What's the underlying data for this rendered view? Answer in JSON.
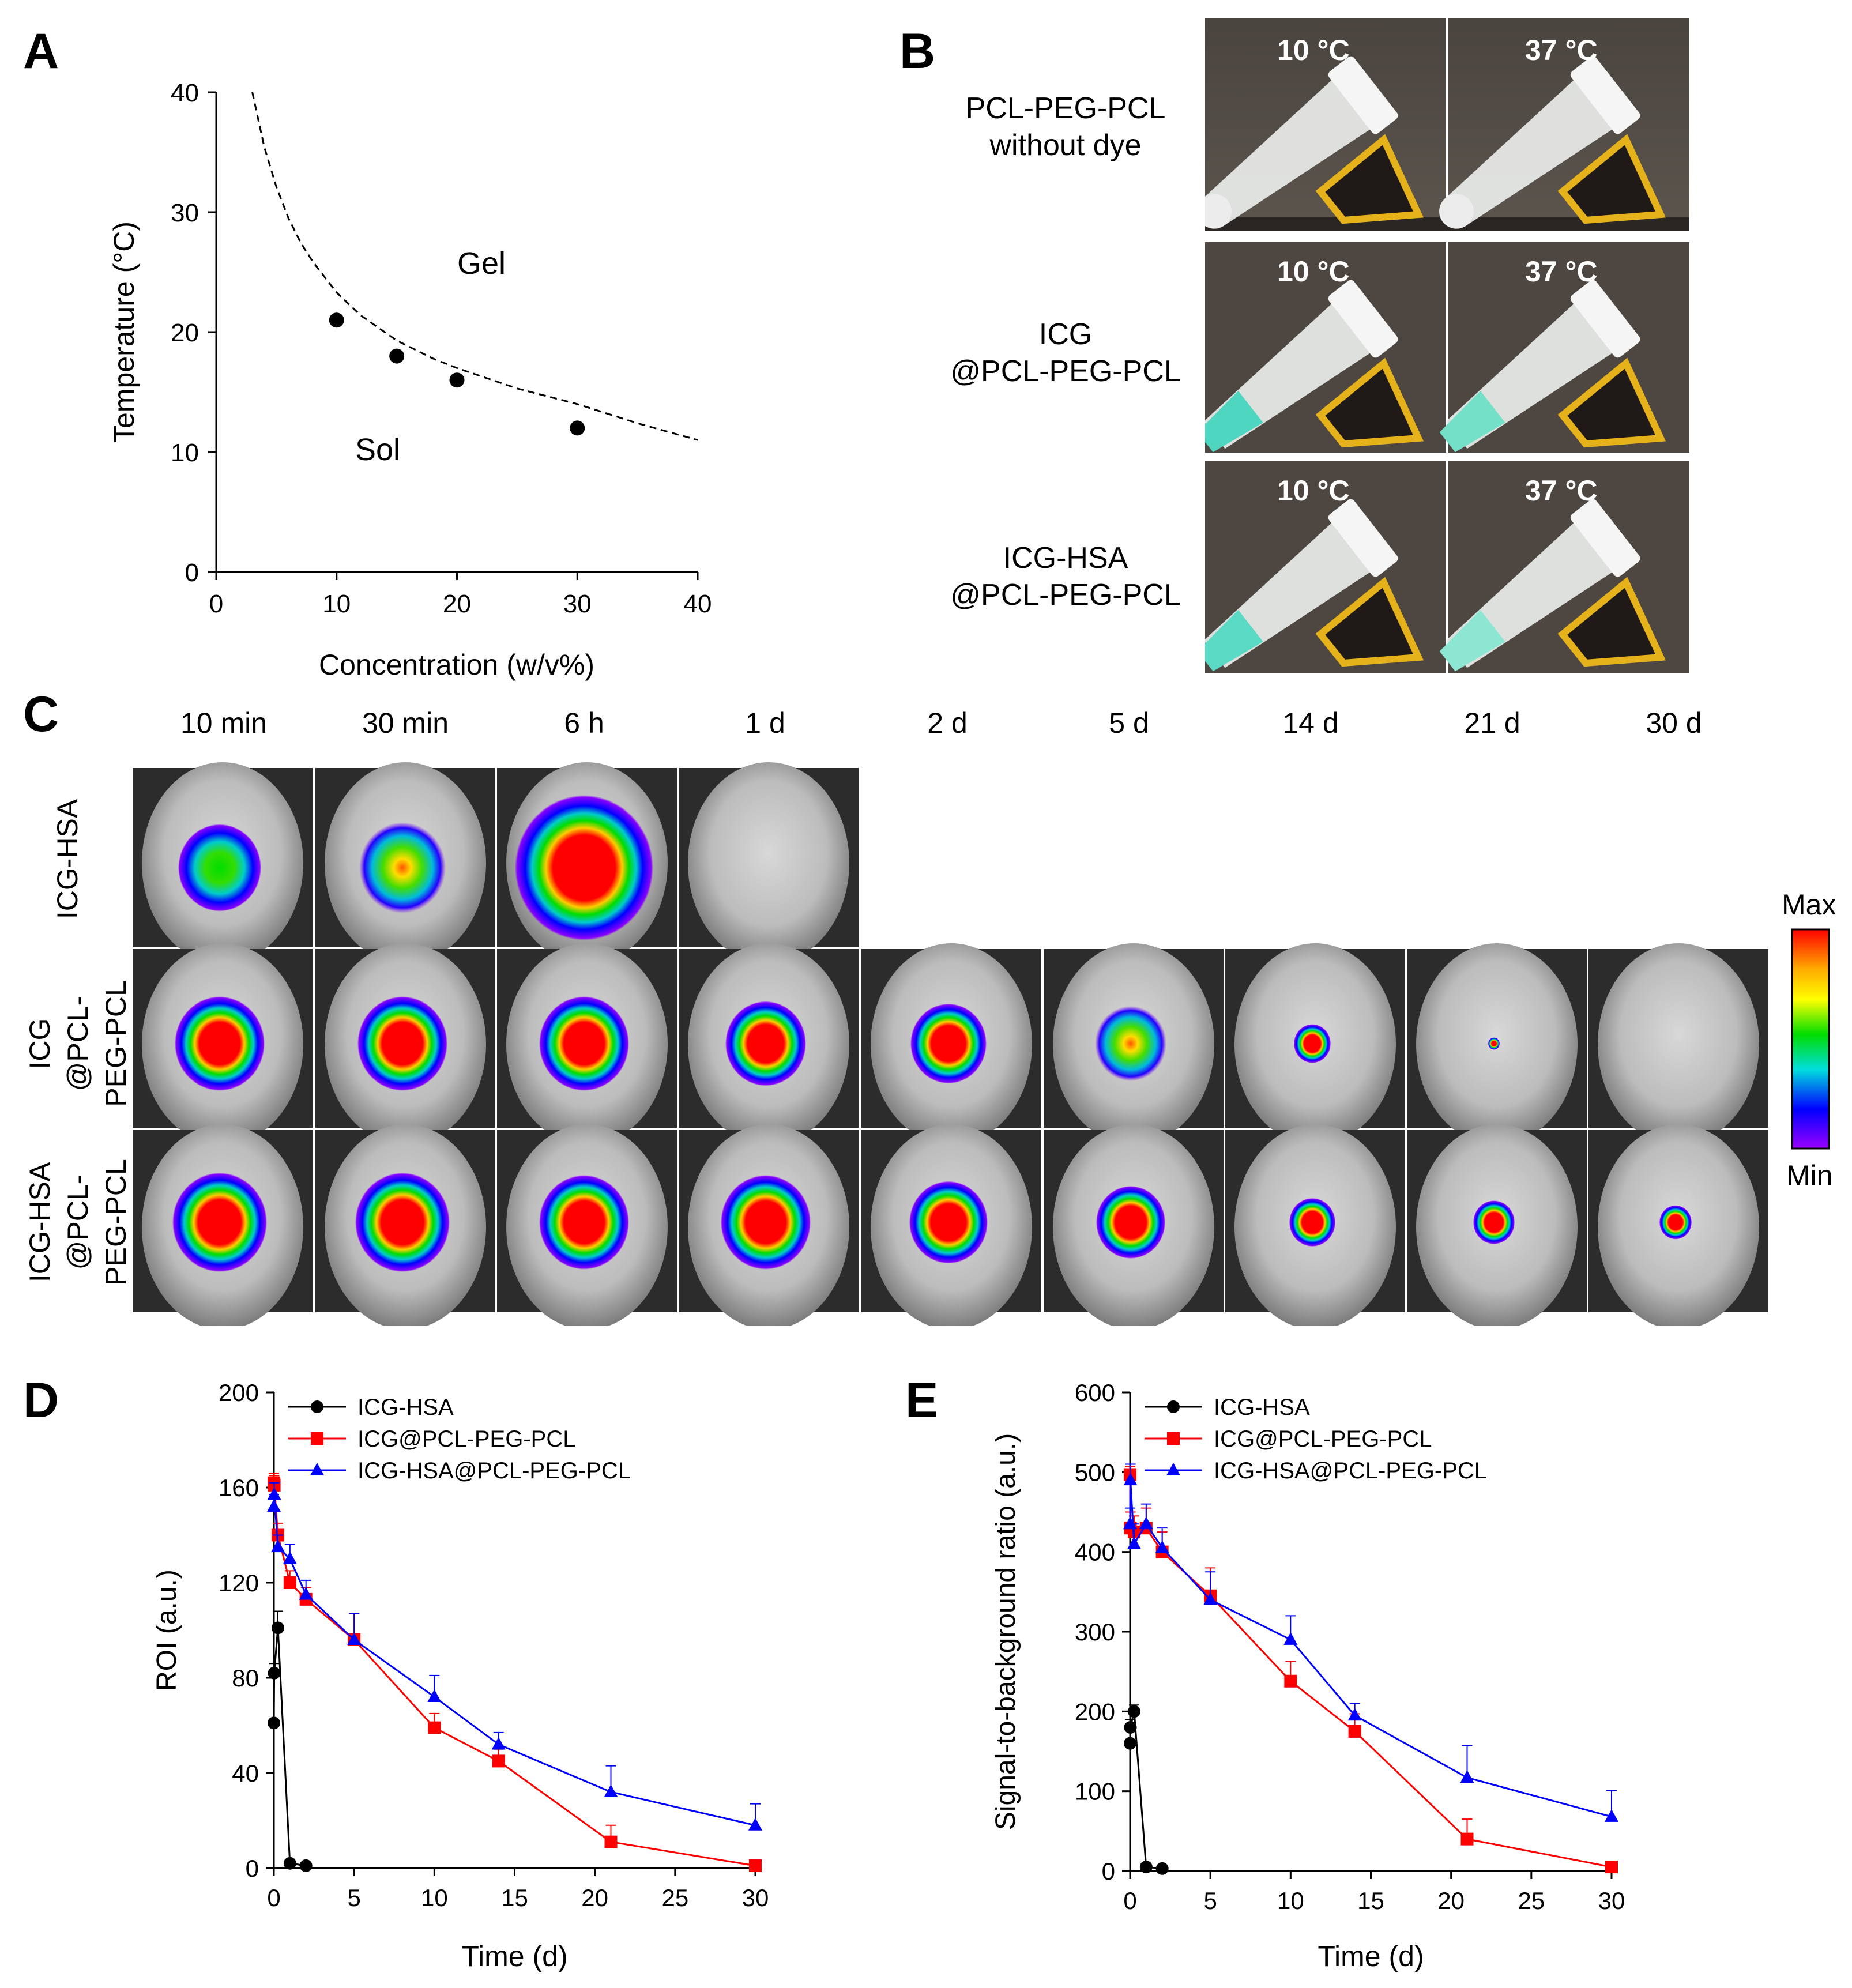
{
  "panels": {
    "a": "A",
    "b": "B",
    "c": "C",
    "d": "D",
    "e": "E"
  },
  "chart_data": [
    {
      "id": "A",
      "type": "scatter",
      "title": "",
      "xlabel": "Concentration (w/v%)",
      "ylabel": "Temperature (°C)",
      "xlim": [
        0,
        40
      ],
      "ylim": [
        0,
        40
      ],
      "x_ticks": [
        0,
        10,
        20,
        30,
        40
      ],
      "y_ticks": [
        0,
        10,
        20,
        30,
        40
      ],
      "points": {
        "x": [
          10,
          15,
          20,
          30
        ],
        "y": [
          21,
          18,
          16,
          12
        ]
      },
      "fit_curve": {
        "style": "dashed",
        "x": [
          3,
          4,
          5,
          6,
          7,
          8,
          10,
          12,
          15,
          18,
          20,
          25,
          30,
          35,
          40
        ],
        "y": [
          40,
          35.4,
          32.1,
          29.5,
          27.5,
          25.9,
          23.3,
          21.4,
          19.3,
          17.8,
          17.0,
          15.3,
          14.0,
          12.4,
          11.0
        ]
      },
      "annotations": [
        "Gel",
        "Sol"
      ]
    },
    {
      "id": "D",
      "type": "line",
      "xlabel": "Time (d)",
      "ylabel": "ROI (a.u.)",
      "xlim": [
        0,
        30
      ],
      "ylim": [
        0,
        200
      ],
      "x_ticks": [
        0,
        5,
        10,
        15,
        20,
        25,
        30
      ],
      "y_ticks": [
        0,
        40,
        80,
        120,
        160,
        200
      ],
      "legend": "top-left",
      "series": [
        {
          "name": "ICG-HSA",
          "color": "#000000",
          "marker": "circle",
          "x": [
            0,
            0.02,
            0.25,
            1,
            2
          ],
          "y": [
            61,
            82,
            101,
            2,
            1
          ],
          "err": [
            0,
            4,
            7,
            0,
            0
          ]
        },
        {
          "name": "ICG@PCL-PEG-PCL",
          "color": "#ff0000",
          "marker": "square",
          "x": [
            0,
            0.02,
            0.25,
            1,
            2,
            5,
            10,
            14,
            21,
            30
          ],
          "y": [
            162,
            161,
            140,
            120,
            113,
            96,
            59,
            45,
            11,
            1
          ],
          "err": [
            4,
            4,
            5,
            5,
            5,
            11,
            6,
            5,
            7,
            1
          ]
        },
        {
          "name": "ICG-HSA@PCL-PEG-PCL",
          "color": "#0000ff",
          "marker": "triangle",
          "x": [
            0,
            0.02,
            0.25,
            1,
            2,
            5,
            10,
            14,
            21,
            30
          ],
          "y": [
            152,
            157,
            135,
            130,
            115,
            96,
            72,
            52,
            32,
            18
          ],
          "err": [
            5,
            5,
            5,
            6,
            6,
            11,
            9,
            5,
            11,
            9
          ]
        }
      ]
    },
    {
      "id": "E",
      "type": "line",
      "xlabel": "Time (d)",
      "ylabel": "Signal-to-background ratio (a.u.)",
      "xlim": [
        0,
        30
      ],
      "ylim": [
        0,
        600
      ],
      "x_ticks": [
        0,
        5,
        10,
        15,
        20,
        25,
        30
      ],
      "y_ticks": [
        0,
        100,
        200,
        300,
        400,
        500,
        600
      ],
      "legend": "top-left",
      "series": [
        {
          "name": "ICG-HSA",
          "color": "#000000",
          "marker": "circle",
          "x": [
            0,
            0.02,
            0.25,
            1,
            2
          ],
          "y": [
            160,
            180,
            200,
            5,
            3
          ],
          "err": [
            0,
            10,
            8,
            0,
            0
          ]
        },
        {
          "name": "ICG@PCL-PEG-PCL",
          "color": "#ff0000",
          "marker": "square",
          "x": [
            0,
            0.02,
            0.25,
            1,
            2,
            5,
            10,
            14,
            21,
            30
          ],
          "y": [
            497,
            430,
            425,
            430,
            400,
            345,
            238,
            175,
            40,
            5
          ],
          "err": [
            10,
            20,
            20,
            25,
            25,
            35,
            25,
            22,
            25,
            5
          ]
        },
        {
          "name": "ICG-HSA@PCL-PEG-PCL",
          "color": "#0000ff",
          "marker": "triangle",
          "x": [
            0,
            0.02,
            0.25,
            1,
            2,
            5,
            10,
            14,
            21,
            30
          ],
          "y": [
            435,
            490,
            410,
            435,
            405,
            340,
            290,
            195,
            117,
            68
          ],
          "err": [
            20,
            20,
            25,
            25,
            25,
            35,
            30,
            15,
            40,
            33
          ]
        }
      ]
    }
  ],
  "panel_a_labels": {
    "gel": "Gel",
    "sol": "Sol"
  },
  "panel_b": {
    "rows": [
      {
        "label_line1": "PCL-PEG-PCL",
        "label_line2": "without  dye",
        "temp_left": "10 °C",
        "temp_right": "37 °C"
      },
      {
        "label_line1": "ICG",
        "label_line2": "@PCL-PEG-PCL",
        "temp_left": "10 °C",
        "temp_right": "37 °C"
      },
      {
        "label_line1": "ICG-HSA",
        "label_line2": "@PCL-PEG-PCL",
        "temp_left": "10 °C",
        "temp_right": "37 °C"
      }
    ]
  },
  "panel_c": {
    "timepoints": [
      "10 min",
      "30 min",
      "6 h",
      "1 d",
      "2 d",
      "5 d",
      "14 d",
      "21 d",
      "30 d"
    ],
    "rows": [
      {
        "line1": "ICG-HSA",
        "line2": "",
        "line3": ""
      },
      {
        "line1": "ICG",
        "line2": "@PCL-",
        "line3": "PEG-PCL"
      },
      {
        "line1": "ICG-HSA",
        "line2": "@PCL-",
        "line3": "PEG-PCL"
      }
    ],
    "scale_max": "Max",
    "scale_min": "Min"
  },
  "colors": {
    "hsa": "#000000",
    "icg_gel": "#ff0000",
    "icg_hsa_gel": "#0000ff"
  }
}
